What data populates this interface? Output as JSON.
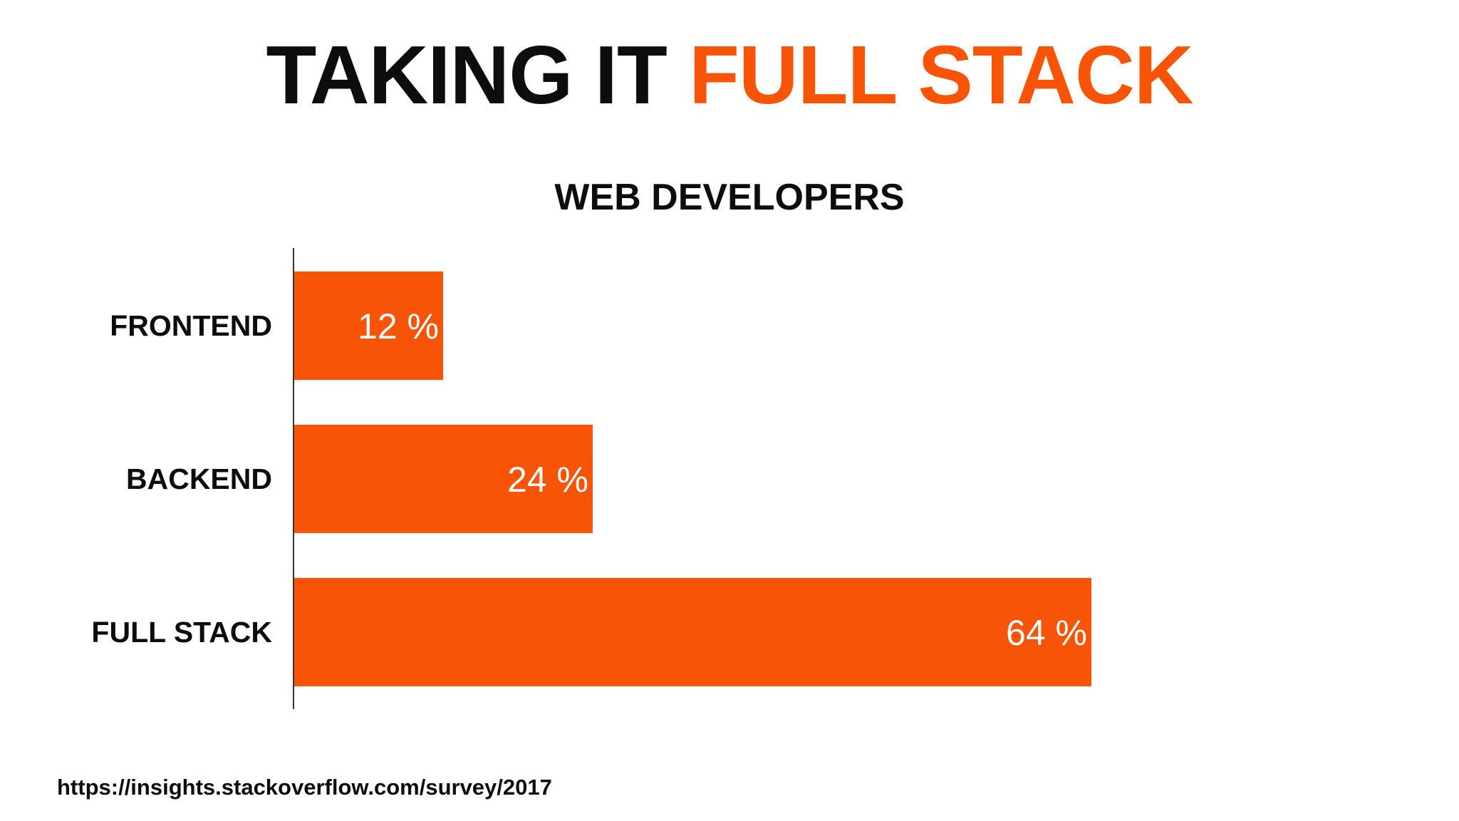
{
  "slide": {
    "title_part1": "TAKING IT",
    "title_part2": "FULL STACK",
    "source": "https://insights.stackoverflow.com/survey/2017"
  },
  "colors": {
    "accent": "#f85408",
    "text": "#0d0d0d",
    "bar_label": "#ffffff",
    "axis": "#333333"
  },
  "chart_data": {
    "type": "bar",
    "orientation": "horizontal",
    "title": "WEB DEVELOPERS",
    "categories": [
      "FRONTEND",
      "BACKEND",
      "FULL STACK"
    ],
    "values": [
      12,
      24,
      64
    ],
    "value_labels": [
      "12 %",
      "24 %",
      "64 %"
    ],
    "unit": "%",
    "xlim": [
      0,
      100
    ],
    "grid": false,
    "legend": "none"
  }
}
